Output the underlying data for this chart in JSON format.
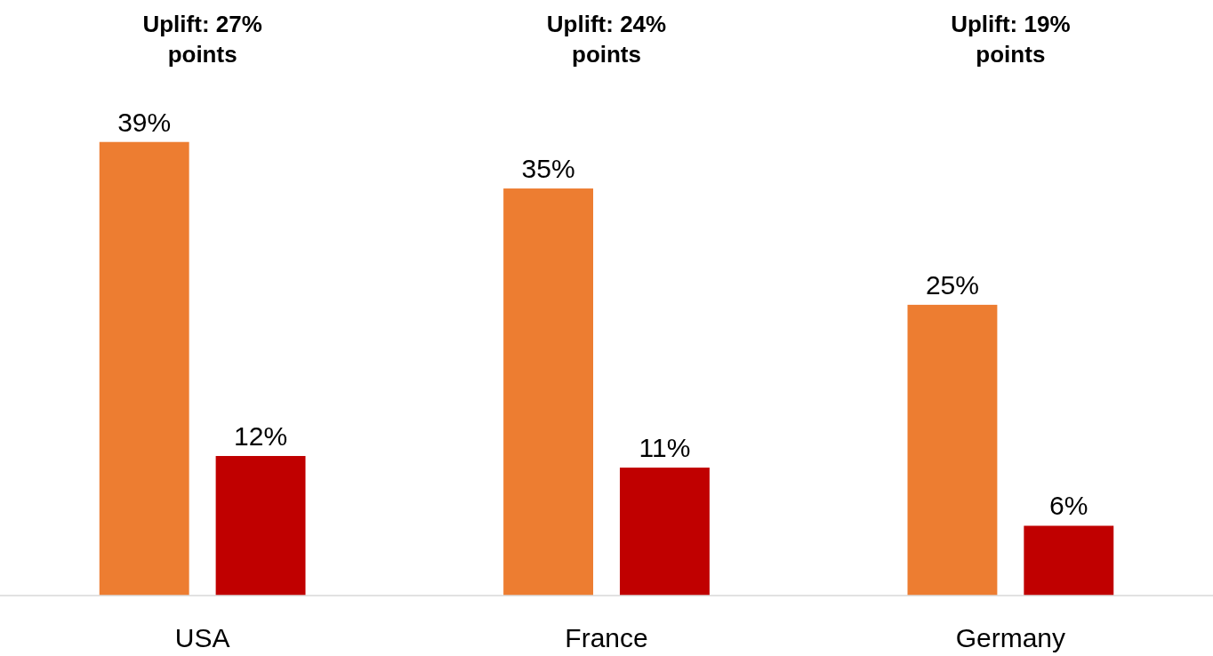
{
  "chart_data": {
    "type": "bar",
    "categories": [
      "USA",
      "France",
      "Germany"
    ],
    "series": [
      {
        "color": "#ed7d31",
        "values": [
          39,
          35,
          25
        ],
        "value_labels": [
          "39%",
          "35%",
          "25%"
        ]
      },
      {
        "color": "#c00000",
        "values": [
          12,
          11,
          6
        ],
        "value_labels": [
          "12%",
          "11%",
          "6%"
        ]
      }
    ],
    "annotations": [
      "Uplift: 27% points",
      "Uplift: 24% points",
      "Uplift: 19% points"
    ]
  }
}
